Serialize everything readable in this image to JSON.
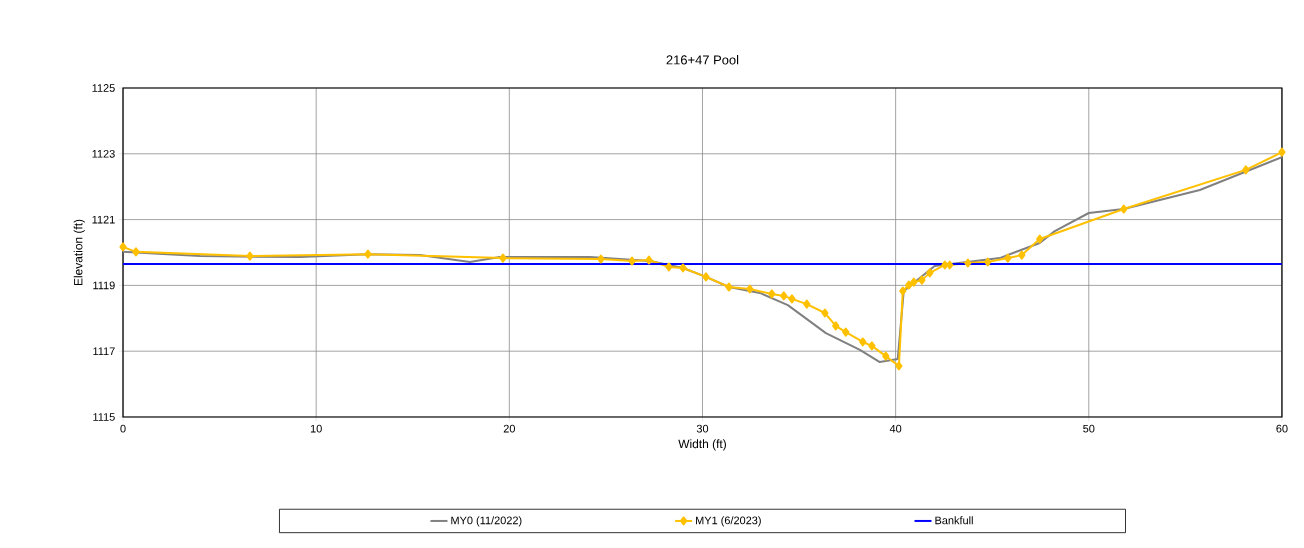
{
  "chart_data": {
    "type": "line",
    "title": "216+47 Pool",
    "xlabel": "Width (ft)",
    "ylabel": "Elevation (ft)",
    "xlim": [
      0,
      60
    ],
    "xticks": [
      0,
      10,
      20,
      30,
      40,
      50,
      60
    ],
    "ylim": [
      1115,
      1125
    ],
    "yticks": [
      1115,
      1117,
      1119,
      1121,
      1123,
      1125
    ],
    "grid": true,
    "legend": "bottom",
    "series": [
      {
        "name": "MY0 (11/2022)",
        "color": "#808080",
        "marker": "none",
        "x": [
          0,
          3.99,
          9.16,
          12.68,
          15.37,
          17.96,
          19.51,
          24.17,
          27.28,
          28.99,
          30.18,
          31.37,
          32.97,
          34.42,
          36.39,
          38.15,
          39.18,
          40.11,
          40.42,
          42.02,
          45.39,
          47.46,
          48.24,
          50,
          51.81,
          55.75,
          60
        ],
        "values": [
          1120.02,
          1119.89,
          1119.86,
          1119.95,
          1119.92,
          1119.71,
          1119.86,
          1119.86,
          1119.74,
          1119.53,
          1119.26,
          1118.95,
          1118.77,
          1118.4,
          1117.55,
          1117.04,
          1116.67,
          1116.76,
          1118.83,
          1119.59,
          1119.83,
          1120.29,
          1120.65,
          1121.2,
          1121.32,
          1121.9,
          1122.9
        ]
      },
      {
        "name": "MY1 (6/2023)",
        "color": "#ffc000",
        "marker": "diamond",
        "x": [
          0,
          0.67,
          6.57,
          12.68,
          19.67,
          24.74,
          26.35,
          27.23,
          28.26,
          28.99,
          30.18,
          31.37,
          32.45,
          33.59,
          34.21,
          34.63,
          35.4,
          36.34,
          36.9,
          37.42,
          38.3,
          38.77,
          39.49,
          40.17,
          40.37,
          40.68,
          40.94,
          41.36,
          41.77,
          42.55,
          42.8,
          43.74,
          44.77,
          45.81,
          46.53,
          47.46,
          51.81,
          58.13,
          60
        ],
        "values": [
          1120.17,
          1120.02,
          1119.89,
          1119.95,
          1119.83,
          1119.8,
          1119.74,
          1119.77,
          1119.56,
          1119.53,
          1119.26,
          1118.95,
          1118.89,
          1118.74,
          1118.68,
          1118.59,
          1118.43,
          1118.16,
          1117.77,
          1117.58,
          1117.28,
          1117.16,
          1116.85,
          1116.55,
          1118.83,
          1119.01,
          1119.1,
          1119.16,
          1119.38,
          1119.62,
          1119.62,
          1119.68,
          1119.71,
          1119.83,
          1119.92,
          1120.41,
          1121.32,
          1122.51,
          1123.05
        ]
      },
      {
        "name": "Bankfull",
        "color": "#0000ff",
        "marker": "none",
        "x": [
          0,
          60
        ],
        "values": [
          1119.65,
          1119.65
        ]
      }
    ]
  }
}
